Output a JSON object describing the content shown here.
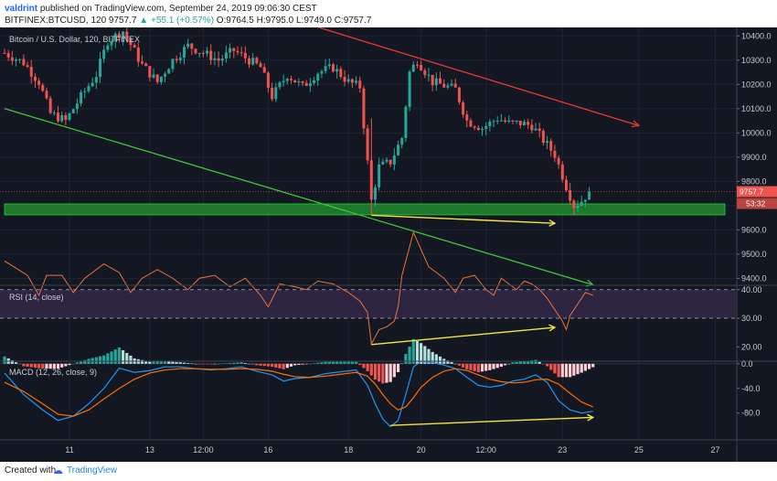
{
  "header": {
    "author": "valdrint",
    "published_text": "published on TradingView.com, September 24, 2019 09:06:30 CEST",
    "symbol_line": {
      "symbol": "BITFINEX:BTCUSD, 120",
      "last": "9757.7",
      "change": "▲ +55.1 (+0.57%)",
      "ohlc": "O:9764.5 H:9795.0 L:9749.0 C:9757.7"
    }
  },
  "legend": {
    "main": "Bitcoin / U.S. Dollar, 120, BITFINEX",
    "rsi": "RSI (14, close)",
    "macd": "MACD (12, 26, close, 9)"
  },
  "footer": {
    "created_with": "Created with",
    "brand": "TradingView"
  },
  "price_tags": {
    "last": "9757.7",
    "countdown": "53:32"
  },
  "colors": {
    "background": "#131722",
    "up": "#26a69a",
    "down": "#ef5350",
    "rsi_band": "#2c2440",
    "rsi_line": "#e8743b",
    "macd_line": "#2196f3",
    "signal_line": "#ff6d00",
    "support_zone": "#1f8a2d",
    "red_trendline": "#e53935",
    "green_trendline": "#43c43a",
    "yellow_arrow": "#f4e34a"
  },
  "chart_data": [
    {
      "type": "candlestick",
      "panel": "price",
      "title": "Bitcoin / U.S. Dollar, 120, BITFINEX",
      "interval_minutes": 120,
      "x_ticks": [
        "11",
        "13",
        "12:00",
        "16",
        "18",
        "20",
        "12:00",
        "23",
        "25",
        "27"
      ],
      "y_ticks": [
        9400,
        9500,
        9600,
        9700,
        9800,
        9900,
        10000,
        10100,
        10200,
        10300,
        10400
      ],
      "ylim": [
        9375,
        10435
      ],
      "grid": true,
      "current_price": 9757.7,
      "close_path": [
        [
          0,
          10330
        ],
        [
          5,
          10290
        ],
        [
          9,
          10210
        ],
        [
          12,
          10080
        ],
        [
          16,
          10050
        ],
        [
          20,
          10150
        ],
        [
          24,
          10240
        ],
        [
          27,
          10380
        ],
        [
          31,
          10420
        ],
        [
          36,
          10280
        ],
        [
          40,
          10210
        ],
        [
          44,
          10300
        ],
        [
          48,
          10360
        ],
        [
          52,
          10330
        ],
        [
          56,
          10300
        ],
        [
          60,
          10340
        ],
        [
          64,
          10300
        ],
        [
          67,
          10270
        ],
        [
          70,
          10150
        ],
        [
          74,
          10240
        ],
        [
          78,
          10190
        ],
        [
          82,
          10250
        ],
        [
          86,
          10270
        ],
        [
          90,
          10210
        ],
        [
          93,
          10190
        ],
        [
          96,
          9720
        ],
        [
          98,
          9860
        ],
        [
          101,
          9880
        ],
        [
          104,
          9980
        ],
        [
          106,
          10250
        ],
        [
          108,
          10300
        ],
        [
          112,
          10210
        ],
        [
          116,
          10190
        ],
        [
          118,
          10180
        ],
        [
          121,
          10050
        ],
        [
          125,
          10020
        ],
        [
          129,
          10060
        ],
        [
          132,
          10040
        ],
        [
          135,
          10040
        ],
        [
          138,
          10030
        ],
        [
          141,
          9970
        ],
        [
          144,
          9910
        ],
        [
          147,
          9780
        ],
        [
          149,
          9700
        ],
        [
          151,
          9720
        ],
        [
          153,
          9757.7
        ]
      ],
      "trendlines": [
        {
          "color": "red",
          "from": {
            "bar": 75,
            "price": 10470
          },
          "to": {
            "bar": 166,
            "price": 10030
          },
          "arrow": true
        },
        {
          "color": "green",
          "from": {
            "bar": 0,
            "price": 10100
          },
          "to": {
            "bar": 154,
            "price": 9373
          },
          "arrow": true
        }
      ],
      "zones": [
        {
          "color": "green",
          "from_price": 9662,
          "to_price": 9707
        }
      ],
      "annotations": [
        {
          "type": "arrow",
          "color": "yellow",
          "from": {
            "bar": 96,
            "price": 9660
          },
          "to": {
            "bar": 144,
            "price": 9627
          }
        }
      ]
    },
    {
      "type": "line",
      "panel": "rsi",
      "title": "RSI (14, close)",
      "y_ticks": [
        20,
        30,
        40
      ],
      "ylim": [
        15.3,
        41.2
      ],
      "band": [
        30,
        40
      ],
      "series": [
        {
          "points": [
            [
              0,
              50
            ],
            [
              6,
              45
            ],
            [
              9,
              38
            ],
            [
              11,
              45
            ],
            [
              15,
              45
            ],
            [
              18,
              39
            ],
            [
              21,
              44
            ],
            [
              26,
              49
            ],
            [
              30,
              46
            ],
            [
              33,
              39
            ],
            [
              36,
              44
            ],
            [
              40,
              47
            ],
            [
              44,
              44
            ],
            [
              48,
              40
            ],
            [
              51,
              44
            ],
            [
              55,
              45
            ],
            [
              59,
              41
            ],
            [
              63,
              44
            ],
            [
              67,
              38
            ],
            [
              69,
              34
            ],
            [
              72,
              42
            ],
            [
              76,
              41
            ],
            [
              79,
              40
            ],
            [
              82,
              43
            ],
            [
              86,
              42
            ],
            [
              90,
              39
            ],
            [
              93,
              36
            ],
            [
              95,
              32
            ],
            [
              96,
              21
            ],
            [
              98,
              26
            ],
            [
              100,
              27
            ],
            [
              102,
              29
            ],
            [
              103,
              34
            ],
            [
              104,
              45
            ],
            [
              107,
              60
            ],
            [
              111,
              48
            ],
            [
              115,
              44
            ],
            [
              118,
              39
            ],
            [
              120,
              44
            ],
            [
              123,
              45
            ],
            [
              126,
              40
            ],
            [
              128,
              38
            ],
            [
              130,
              44
            ],
            [
              132,
              42
            ],
            [
              134,
              40
            ],
            [
              136,
              43
            ],
            [
              138,
              42
            ],
            [
              140,
              40
            ],
            [
              142,
              37
            ],
            [
              144,
              33
            ],
            [
              146,
              29
            ],
            [
              147,
              26
            ],
            [
              148,
              31
            ],
            [
              150,
              35
            ],
            [
              152,
              39
            ],
            [
              154,
              38
            ]
          ]
        }
      ],
      "annotations": [
        {
          "type": "arrow",
          "color": "yellow",
          "from": {
            "bar": 96,
            "value": 20.8
          },
          "to": {
            "bar": 144,
            "value": 26.8
          }
        }
      ]
    },
    {
      "type": "bar+line",
      "panel": "macd",
      "title": "MACD (12, 26, close, 9)",
      "y_ticks": [
        0.0,
        -40.0,
        -80.0
      ],
      "ylim": [
        -122,
        2.7
      ],
      "macd_path": [
        [
          0,
          -15
        ],
        [
          5,
          -50
        ],
        [
          10,
          -75
        ],
        [
          14,
          -92
        ],
        [
          18,
          -85
        ],
        [
          22,
          -65
        ],
        [
          26,
          -40
        ],
        [
          30,
          -7
        ],
        [
          34,
          -14
        ],
        [
          38,
          -11
        ],
        [
          42,
          -5
        ],
        [
          46,
          -5
        ],
        [
          50,
          -8
        ],
        [
          54,
          -10
        ],
        [
          58,
          -8
        ],
        [
          62,
          -5
        ],
        [
          66,
          -12
        ],
        [
          70,
          -18
        ],
        [
          73,
          -28
        ],
        [
          76,
          -24
        ],
        [
          80,
          -22
        ],
        [
          84,
          -16
        ],
        [
          88,
          -13
        ],
        [
          92,
          -10
        ],
        [
          95,
          -35
        ],
        [
          97,
          -65
        ],
        [
          99,
          -90
        ],
        [
          101,
          -102
        ],
        [
          103,
          -92
        ],
        [
          105,
          -50
        ],
        [
          107,
          -5
        ],
        [
          109,
          4
        ],
        [
          112,
          2
        ],
        [
          115,
          -2
        ],
        [
          118,
          -8
        ],
        [
          121,
          -22
        ],
        [
          124,
          -35
        ],
        [
          127,
          -38
        ],
        [
          130,
          -35
        ],
        [
          133,
          -28
        ],
        [
          136,
          -25
        ],
        [
          139,
          -18
        ],
        [
          142,
          -30
        ],
        [
          145,
          -60
        ],
        [
          148,
          -75
        ],
        [
          151,
          -80
        ],
        [
          154,
          -77
        ]
      ],
      "signal_path": [
        [
          0,
          -30
        ],
        [
          5,
          -45
        ],
        [
          10,
          -65
        ],
        [
          14,
          -82
        ],
        [
          18,
          -85
        ],
        [
          22,
          -75
        ],
        [
          26,
          -57
        ],
        [
          30,
          -40
        ],
        [
          34,
          -25
        ],
        [
          38,
          -15
        ],
        [
          42,
          -10
        ],
        [
          46,
          -8
        ],
        [
          50,
          -8
        ],
        [
          54,
          -9
        ],
        [
          58,
          -9
        ],
        [
          62,
          -8
        ],
        [
          66,
          -9
        ],
        [
          70,
          -12
        ],
        [
          73,
          -17
        ],
        [
          76,
          -21
        ],
        [
          80,
          -22
        ],
        [
          84,
          -20
        ],
        [
          88,
          -17
        ],
        [
          92,
          -14
        ],
        [
          95,
          -20
        ],
        [
          97,
          -33
        ],
        [
          99,
          -50
        ],
        [
          101,
          -65
        ],
        [
          103,
          -75
        ],
        [
          105,
          -70
        ],
        [
          107,
          -55
        ],
        [
          109,
          -38
        ],
        [
          112,
          -22
        ],
        [
          115,
          -12
        ],
        [
          118,
          -8
        ],
        [
          121,
          -11
        ],
        [
          124,
          -18
        ],
        [
          127,
          -25
        ],
        [
          130,
          -29
        ],
        [
          133,
          -31
        ],
        [
          136,
          -30
        ],
        [
          139,
          -26
        ],
        [
          142,
          -25
        ],
        [
          145,
          -33
        ],
        [
          148,
          -48
        ],
        [
          151,
          -62
        ],
        [
          154,
          -70
        ]
      ],
      "annotations": [
        {
          "type": "arrow",
          "color": "yellow",
          "from": {
            "bar": 101,
            "value": -100
          },
          "to": {
            "bar": 154,
            "value": -87
          }
        }
      ]
    }
  ]
}
